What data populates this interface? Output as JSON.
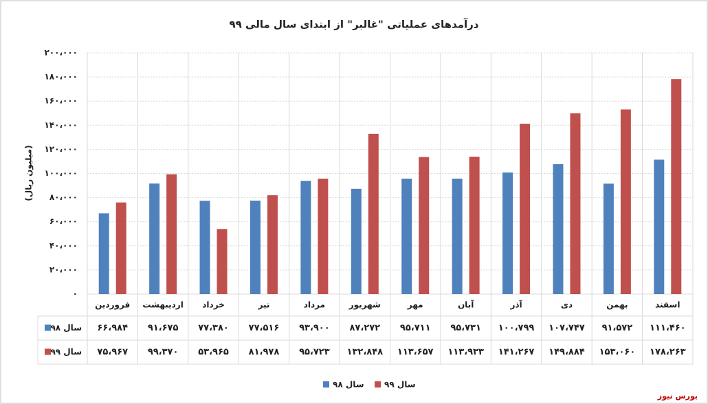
{
  "chart_data": {
    "type": "bar",
    "title": "درآمدهای عملیاتی \"غالبر\" از ابتدای سال مالی ۹۹",
    "y_label": "(میلیون ریال)",
    "source": "بورس نیوز",
    "categories": [
      "فروردین",
      "اردیبهشت",
      "خرداد",
      "تیر",
      "مرداد",
      "شهریور",
      "مهر",
      "آبان",
      "آذر",
      "دی",
      "بهمن",
      "اسفند"
    ],
    "series": [
      {
        "name": "سال ۹۸",
        "color": "#4f81bd",
        "values": [
          66984,
          91675,
          77380,
          77516,
          93900,
          87272,
          95711,
          95731,
          100799,
          107747,
          91572,
          111460
        ],
        "value_labels": [
          "۶۶،۹۸۴",
          "۹۱،۶۷۵",
          "۷۷،۳۸۰",
          "۷۷،۵۱۶",
          "۹۳،۹۰۰",
          "۸۷،۲۷۲",
          "۹۵،۷۱۱",
          "۹۵،۷۳۱",
          "۱۰۰،۷۹۹",
          "۱۰۷،۷۴۷",
          "۹۱،۵۷۲",
          "۱۱۱،۴۶۰"
        ]
      },
      {
        "name": "سال ۹۹",
        "color": "#c0504d",
        "values": [
          75967,
          99370,
          53965,
          81978,
          95723,
          132848,
          113657,
          113933,
          141267,
          149884,
          153060,
          178263
        ],
        "value_labels": [
          "۷۵،۹۶۷",
          "۹۹،۳۷۰",
          "۵۳،۹۶۵",
          "۸۱،۹۷۸",
          "۹۵،۷۲۳",
          "۱۳۲،۸۴۸",
          "۱۱۳،۶۵۷",
          "۱۱۳،۹۳۳",
          "۱۴۱،۲۶۷",
          "۱۴۹،۸۸۴",
          "۱۵۳،۰۶۰",
          "۱۷۸،۲۶۳"
        ]
      }
    ],
    "ylim": [
      0,
      200000
    ],
    "yticks": [
      {
        "value": 0,
        "label": "۰"
      },
      {
        "value": 20000,
        "label": "۲۰،۰۰۰"
      },
      {
        "value": 40000,
        "label": "۴۰،۰۰۰"
      },
      {
        "value": 60000,
        "label": "۶۰،۰۰۰"
      },
      {
        "value": 80000,
        "label": "۸۰،۰۰۰"
      },
      {
        "value": 100000,
        "label": "۱۰۰،۰۰۰"
      },
      {
        "value": 120000,
        "label": "۱۲۰،۰۰۰"
      },
      {
        "value": 140000,
        "label": "۱۴۰،۰۰۰"
      },
      {
        "value": 160000,
        "label": "۱۶۰،۰۰۰"
      },
      {
        "value": 180000,
        "label": "۱۸۰،۰۰۰"
      },
      {
        "value": 200000,
        "label": "۲۰۰،۰۰۰"
      }
    ],
    "grid": true
  }
}
